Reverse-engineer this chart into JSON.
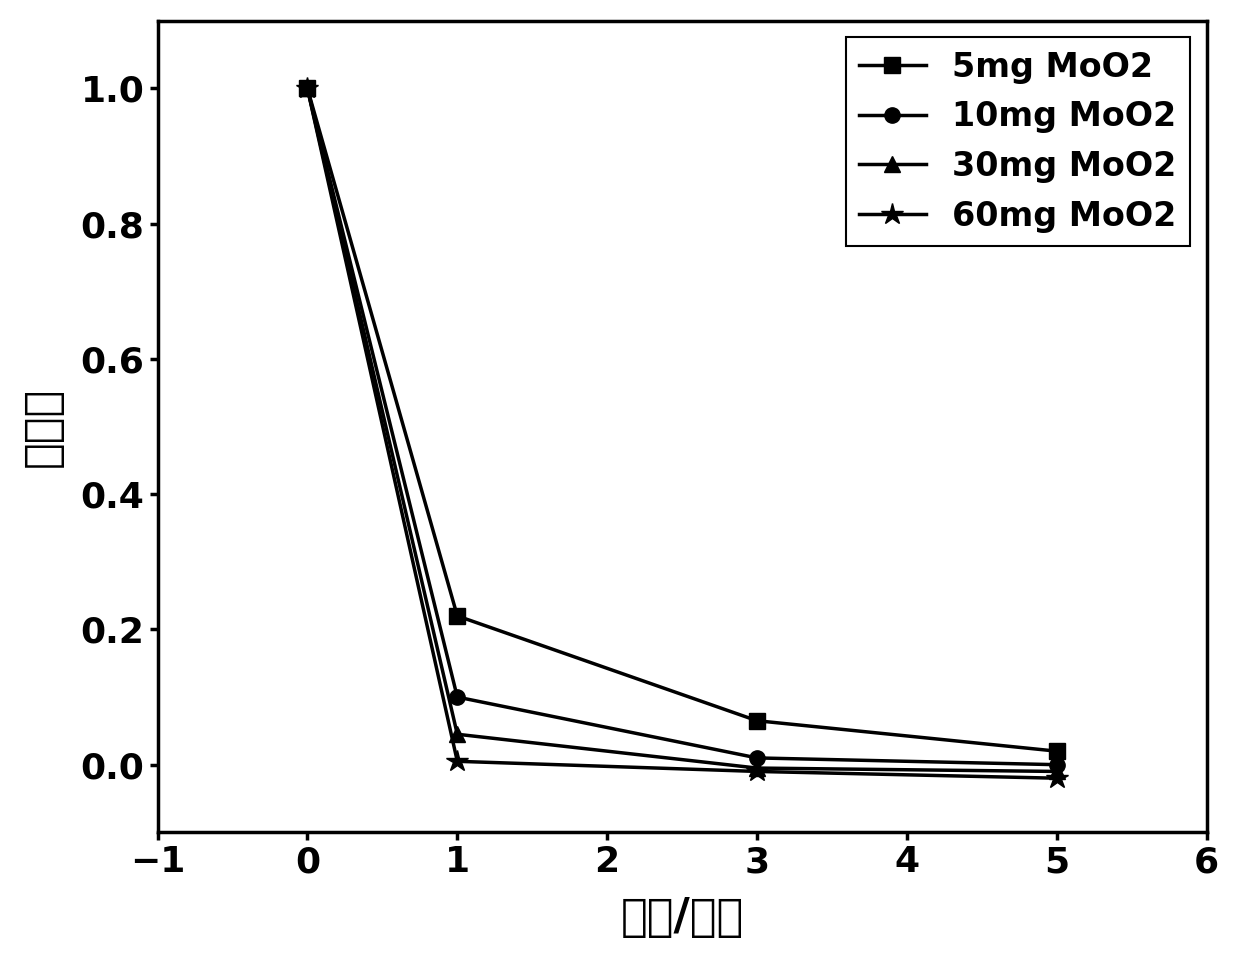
{
  "series": [
    {
      "label": "5mg MoO2",
      "x": [
        0,
        1,
        3,
        5
      ],
      "y": [
        1.0,
        0.22,
        0.065,
        0.02
      ],
      "marker": "s",
      "color": "#000000",
      "markersize": 11
    },
    {
      "label": "10mg MoO2",
      "x": [
        0,
        1,
        3,
        5
      ],
      "y": [
        1.0,
        0.1,
        0.01,
        0.0
      ],
      "marker": "o",
      "color": "#000000",
      "markersize": 11
    },
    {
      "label": "30mg MoO2",
      "x": [
        0,
        1,
        3,
        5
      ],
      "y": [
        1.0,
        0.045,
        -0.005,
        -0.01
      ],
      "marker": "^",
      "color": "#000000",
      "markersize": 11
    },
    {
      "label": "60mg MoO2",
      "x": [
        0,
        1,
        3,
        5
      ],
      "y": [
        1.0,
        0.005,
        -0.01,
        -0.02
      ],
      "marker": "*",
      "color": "#000000",
      "markersize": 16
    }
  ],
  "xlabel": "时间/分钟",
  "ylabel": "降解率",
  "xlim": [
    -1,
    6
  ],
  "ylim": [
    -0.1,
    1.1
  ],
  "xticks": [
    -1,
    0,
    1,
    2,
    3,
    4,
    5,
    6
  ],
  "yticks": [
    0.0,
    0.2,
    0.4,
    0.6,
    0.8,
    1.0
  ],
  "line_width": 2.5,
  "background_color": "#ffffff",
  "legend_loc": "upper right"
}
